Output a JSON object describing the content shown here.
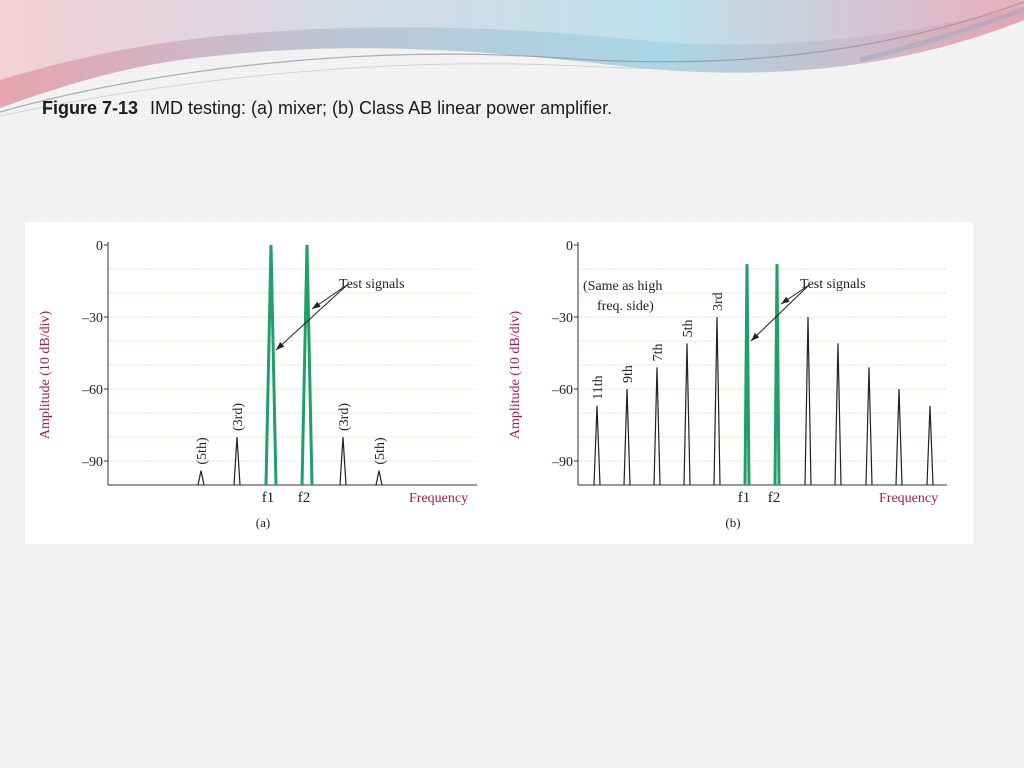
{
  "caption": {
    "number": "Figure 7-13",
    "text": "IMD testing: (a) mixer; (b) Class AB linear power amplifier."
  },
  "colors": {
    "test_signal": "#1fa06a",
    "product": "#222222",
    "axis_label": "#a31c4e",
    "grid": "#d9d98a"
  },
  "chart_data": [
    {
      "type": "bar",
      "panel": "(a)",
      "ylabel": "Amplitude (10 dB/div)",
      "xlabel": "Frequency",
      "yticks": [
        "0",
        "–30",
        "–60",
        "–90"
      ],
      "ylim": [
        -100,
        0
      ],
      "annotation": "Test signals",
      "spikes": [
        {
          "label": "(5th)",
          "value": -94,
          "kind": "product"
        },
        {
          "label": "(3rd)",
          "value": -80,
          "kind": "product"
        },
        {
          "label": "f1",
          "value": 0,
          "kind": "test"
        },
        {
          "label": "f2",
          "value": 0,
          "kind": "test"
        },
        {
          "label": "(3rd)",
          "value": -80,
          "kind": "product"
        },
        {
          "label": "(5th)",
          "value": -94,
          "kind": "product"
        }
      ]
    },
    {
      "type": "bar",
      "panel": "(b)",
      "ylabel": "Amplitude (10 dB/div)",
      "xlabel": "Frequency",
      "yticks": [
        "0",
        "–30",
        "–60",
        "–90"
      ],
      "ylim": [
        -100,
        0
      ],
      "annotation": "Test signals",
      "note_line1": "(Same as high",
      "note_line2": "freq. side)",
      "spikes": [
        {
          "label": "11th",
          "value": -67,
          "kind": "product"
        },
        {
          "label": "9th",
          "value": -60,
          "kind": "product"
        },
        {
          "label": "7th",
          "value": -51,
          "kind": "product"
        },
        {
          "label": "5th",
          "value": -41,
          "kind": "product"
        },
        {
          "label": "3rd",
          "value": -30,
          "kind": "product"
        },
        {
          "label": "f1",
          "value": -8,
          "kind": "test"
        },
        {
          "label": "f2",
          "value": -8,
          "kind": "test"
        },
        {
          "label": "",
          "value": -30,
          "kind": "product"
        },
        {
          "label": "",
          "value": -41,
          "kind": "product"
        },
        {
          "label": "",
          "value": -51,
          "kind": "product"
        },
        {
          "label": "",
          "value": -60,
          "kind": "product"
        },
        {
          "label": "",
          "value": -67,
          "kind": "product"
        }
      ]
    }
  ]
}
